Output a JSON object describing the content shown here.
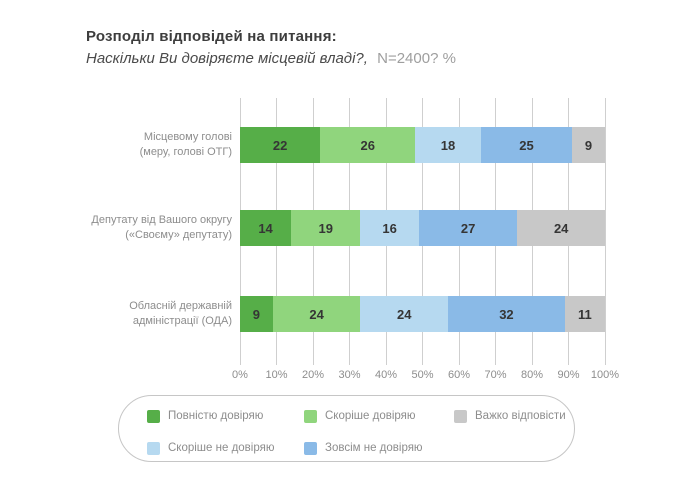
{
  "header": {
    "title": "Розподіл відповідей на питання:",
    "subtitle_question": "Наскільки Ви довіряєте місцевій владі?,",
    "subtitle_sample": "N=2400? %"
  },
  "chart_data": {
    "type": "bar",
    "orientation": "horizontal",
    "stacked": true,
    "title": "Розподіл відповідей на питання: Наскільки Ви довіряєте місцевій владі?, N=2400? %",
    "categories": [
      [
        "Місцевому голові",
        "(меру, голові ОТГ)"
      ],
      [
        "Депутату від Вашого округу",
        "(«Своєму» депутату)"
      ],
      [
        "Обласній державній",
        "адміністрації (ОДА)"
      ]
    ],
    "series": [
      {
        "name": "Повністю довіряю",
        "color": "#56ae48",
        "values": [
          22,
          14,
          9
        ]
      },
      {
        "name": "Скоріше довіряю",
        "color": "#90d57d",
        "values": [
          26,
          19,
          24
        ]
      },
      {
        "name": "Скоріше не довіряю",
        "color": "#b6d9f0",
        "values": [
          18,
          16,
          24
        ]
      },
      {
        "name": "Зовсім не довіряю",
        "color": "#8abae7",
        "values": [
          25,
          27,
          32
        ]
      },
      {
        "name": "Важко відповісти",
        "color": "#c8c8c8",
        "values": [
          9,
          24,
          11
        ]
      }
    ],
    "x_ticks": [
      "0%",
      "10%",
      "20%",
      "30%",
      "40%",
      "50%",
      "60%",
      "70%",
      "80%",
      "90%",
      "100%"
    ],
    "xlim": [
      0,
      100
    ],
    "grid": true,
    "legend_position": "bottom"
  },
  "legend_rows": [
    [
      {
        "label": "Повністю довіряю",
        "color": "#56ae48"
      },
      {
        "label": "Скоріше довіряю",
        "color": "#90d57d"
      },
      {
        "label": "Важко відповісти",
        "color": "#c8c8c8"
      }
    ],
    [
      {
        "label": "Скоріше не довіряю",
        "color": "#b6d9f0"
      },
      {
        "label": "Зовсім не довіряю",
        "color": "#8abae7"
      }
    ]
  ],
  "colors": {
    "grid": "#cfcfcf",
    "bar_value_text": "#353535",
    "axis_text": "#8d8d8d",
    "title_text": "#3d3d3d"
  }
}
